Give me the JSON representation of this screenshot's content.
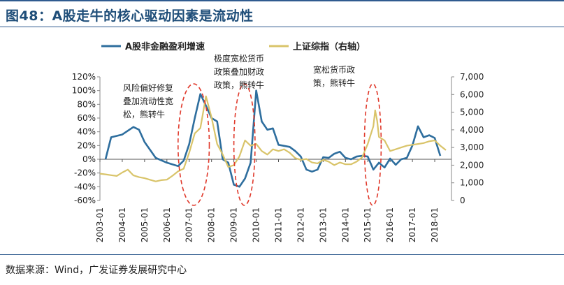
{
  "figure_title": "图48：A股走牛的核心驱动因素是流动性",
  "source_note": "数据来源：Wind，广发证券发展研究中心",
  "colors": {
    "earnings": "#2e6e9e",
    "index": "#d9c46a",
    "ellipse": "#e0392b",
    "header": "#1f4e79"
  },
  "chart_data": {
    "type": "line",
    "series": [
      {
        "name": "A股非金融盈利增速",
        "axis": "left",
        "points": [
          [
            2003.25,
            0
          ],
          [
            2003.5,
            32
          ],
          [
            2004.0,
            36
          ],
          [
            2004.5,
            47
          ],
          [
            2004.75,
            43
          ],
          [
            2005.0,
            25
          ],
          [
            2005.5,
            2
          ],
          [
            2006.0,
            -5
          ],
          [
            2006.5,
            -10
          ],
          [
            2006.75,
            -2
          ],
          [
            2007.0,
            22
          ],
          [
            2007.25,
            60
          ],
          [
            2007.5,
            95
          ],
          [
            2007.75,
            78
          ],
          [
            2008.0,
            60
          ],
          [
            2008.25,
            55
          ],
          [
            2008.5,
            0
          ],
          [
            2008.75,
            -5
          ],
          [
            2009.0,
            -37
          ],
          [
            2009.25,
            -40
          ],
          [
            2009.5,
            -28
          ],
          [
            2009.75,
            -5
          ],
          [
            2010.0,
            100
          ],
          [
            2010.25,
            55
          ],
          [
            2010.5,
            43
          ],
          [
            2010.75,
            45
          ],
          [
            2011.0,
            21
          ],
          [
            2011.5,
            18
          ],
          [
            2011.75,
            12
          ],
          [
            2012.0,
            4
          ],
          [
            2012.25,
            -15
          ],
          [
            2012.5,
            -18
          ],
          [
            2012.75,
            -15
          ],
          [
            2013.0,
            3
          ],
          [
            2013.25,
            2
          ],
          [
            2013.5,
            8
          ],
          [
            2013.75,
            11
          ],
          [
            2014.0,
            2
          ],
          [
            2014.25,
            0
          ],
          [
            2014.5,
            4
          ],
          [
            2014.75,
            5
          ],
          [
            2015.0,
            4
          ],
          [
            2015.25,
            -15
          ],
          [
            2015.5,
            -5
          ],
          [
            2015.75,
            -12
          ],
          [
            2016.0,
            1
          ],
          [
            2016.25,
            -8
          ],
          [
            2016.5,
            0
          ],
          [
            2016.75,
            2
          ],
          [
            2017.0,
            20
          ],
          [
            2017.25,
            48
          ],
          [
            2017.5,
            32
          ],
          [
            2017.75,
            35
          ],
          [
            2018.0,
            31
          ],
          [
            2018.25,
            5
          ]
        ]
      },
      {
        "name": "上证综指（右轴）",
        "axis": "right",
        "points": [
          [
            2003.0,
            1520
          ],
          [
            2003.25,
            1480
          ],
          [
            2003.5,
            1430
          ],
          [
            2003.75,
            1390
          ],
          [
            2004.0,
            1580
          ],
          [
            2004.25,
            1750
          ],
          [
            2004.5,
            1420
          ],
          [
            2004.75,
            1320
          ],
          [
            2005.0,
            1260
          ],
          [
            2005.25,
            1170
          ],
          [
            2005.5,
            1080
          ],
          [
            2005.75,
            1150
          ],
          [
            2006.0,
            1180
          ],
          [
            2006.25,
            1400
          ],
          [
            2006.5,
            1650
          ],
          [
            2006.75,
            1800
          ],
          [
            2007.0,
            2700
          ],
          [
            2007.25,
            3800
          ],
          [
            2007.5,
            4100
          ],
          [
            2007.75,
            5900
          ],
          [
            2008.0,
            4700
          ],
          [
            2008.25,
            3200
          ],
          [
            2008.5,
            2600
          ],
          [
            2008.75,
            1900
          ],
          [
            2009.0,
            2000
          ],
          [
            2009.25,
            2500
          ],
          [
            2009.5,
            3400
          ],
          [
            2009.75,
            3100
          ],
          [
            2010.0,
            3200
          ],
          [
            2010.25,
            2800
          ],
          [
            2010.5,
            2600
          ],
          [
            2010.75,
            2900
          ],
          [
            2011.0,
            2800
          ],
          [
            2011.25,
            2900
          ],
          [
            2011.5,
            2700
          ],
          [
            2011.75,
            2400
          ],
          [
            2012.0,
            2300
          ],
          [
            2012.25,
            2350
          ],
          [
            2012.5,
            2150
          ],
          [
            2012.75,
            2100
          ],
          [
            2013.0,
            2300
          ],
          [
            2013.25,
            2200
          ],
          [
            2013.5,
            2000
          ],
          [
            2013.75,
            2150
          ],
          [
            2014.0,
            2050
          ],
          [
            2014.25,
            2050
          ],
          [
            2014.5,
            2200
          ],
          [
            2014.75,
            2450
          ],
          [
            2015.0,
            3200
          ],
          [
            2015.25,
            4200
          ],
          [
            2015.33,
            5100
          ],
          [
            2015.42,
            4500
          ],
          [
            2015.5,
            3600
          ],
          [
            2015.75,
            3400
          ],
          [
            2016.0,
            2800
          ],
          [
            2016.25,
            2900
          ],
          [
            2016.5,
            3000
          ],
          [
            2016.75,
            3100
          ],
          [
            2017.0,
            3150
          ],
          [
            2017.25,
            3200
          ],
          [
            2017.5,
            3250
          ],
          [
            2017.75,
            3350
          ],
          [
            2018.0,
            3400
          ],
          [
            2018.25,
            3100
          ],
          [
            2018.5,
            2850
          ]
        ]
      }
    ],
    "x_tick_labels": [
      "2003-01",
      "2004-01",
      "2005-01",
      "2006-01",
      "2007-01",
      "2008-01",
      "2009-01",
      "2010-01",
      "2011-01",
      "2012-01",
      "2013-01",
      "2014-01",
      "2015-01",
      "2016-01",
      "2017-01",
      "2018-01"
    ],
    "x_range": [
      2003.0,
      2018.75
    ],
    "left_axis": {
      "ylim": [
        -60,
        120
      ],
      "ticks": [
        "-60%",
        "-40%",
        "-20%",
        "0%",
        "20%",
        "40%",
        "60%",
        "80%",
        "100%",
        "120%"
      ]
    },
    "right_axis": {
      "ylim": [
        0,
        7000
      ],
      "ticks": [
        "0",
        "1,000",
        "2,000",
        "3,000",
        "4,000",
        "5,000",
        "6,000",
        "7,000"
      ]
    },
    "legend_position": "top",
    "annotations": [
      {
        "lines": [
          "风险偏好修复",
          "叠加流动性宽",
          "松，熊转牛"
        ],
        "highlight_range": [
          2006.5,
          2007.9
        ]
      },
      {
        "lines": [
          "极度宽松货币",
          "政策叠加财政",
          "政策，熊转牛"
        ],
        "highlight_range": [
          2009.0,
          2009.95
        ]
      },
      {
        "lines": [
          "宽松货币政",
          "策，熊转牛"
        ],
        "highlight_range": [
          2014.85,
          2015.6
        ]
      }
    ]
  }
}
